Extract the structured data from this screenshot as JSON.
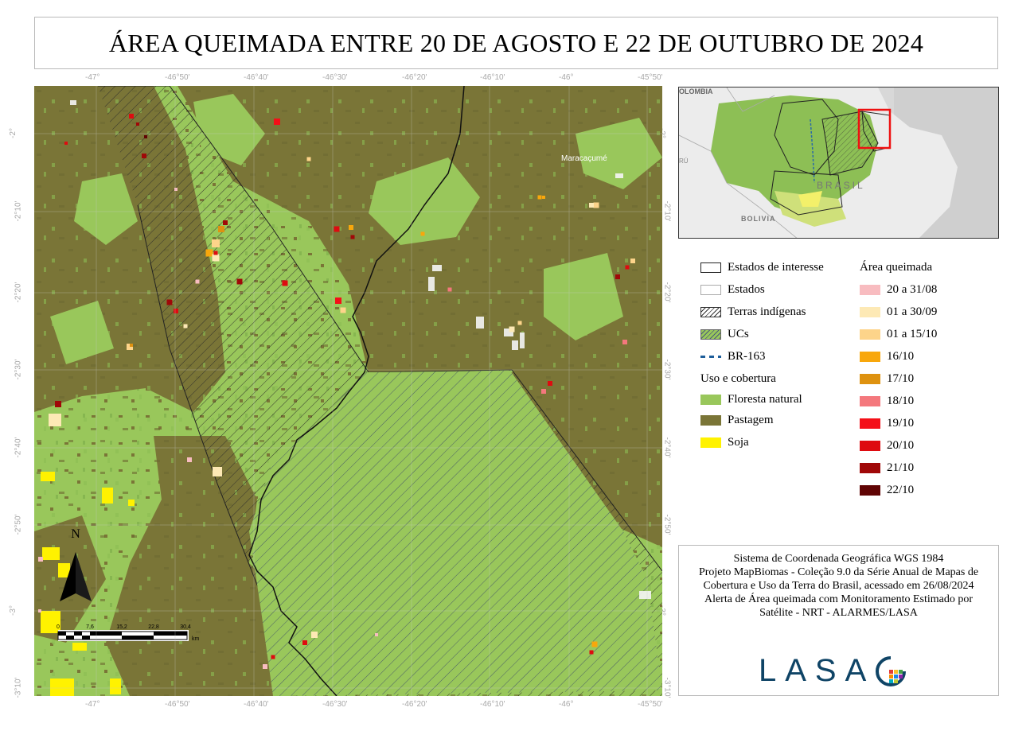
{
  "title": "ÁREA QUEIMADA ENTRE 20 DE AGOSTO E 22 DE OUTUBRO DE 2024",
  "lon_labels": [
    "-47°",
    "-46°50'",
    "-46°40'",
    "-46°30'",
    "-46°20'",
    "-46°10'",
    "-46°",
    "-45°50'"
  ],
  "lat_labels": [
    "-2°",
    "-2°10'",
    "-2°20'",
    "-2°30'",
    "-2°40'",
    "-2°50'",
    "-3°",
    "-3°10'"
  ],
  "map": {
    "place_label": "Maracaçumé",
    "north_label": "N",
    "scale_ticks": [
      "0",
      "7,6",
      "15,2",
      "22,8",
      "30,4"
    ],
    "scale_unit": "km"
  },
  "inset": {
    "labels": [
      "OLOMBIA",
      "BRASIL",
      "BOLIVIA",
      "RÚ"
    ]
  },
  "legend": {
    "left": [
      {
        "label": "Estados de interesse",
        "style": "outline-dark"
      },
      {
        "label": "Estados",
        "style": "outline-light"
      },
      {
        "label": "Terras indígenas",
        "style": "hatch"
      },
      {
        "label": "UCs",
        "style": "green-hatch"
      },
      {
        "label": "BR-163",
        "style": "dash"
      }
    ],
    "uso_title": "Uso e cobertura",
    "uso": [
      {
        "label": "Floresta natural",
        "color": "#99c75b"
      },
      {
        "label": "Pastagem",
        "color": "#7a7537"
      },
      {
        "label": "Soja",
        "color": "#fff200"
      }
    ],
    "burn_title": "Área queimada",
    "burn": [
      {
        "label": "20 a 31/08",
        "color": "#f8bcc0"
      },
      {
        "label": "01 a 30/09",
        "color": "#fde9b5"
      },
      {
        "label": "01 a 15/10",
        "color": "#fdd48a"
      },
      {
        "label": "16/10",
        "color": "#f8a70c"
      },
      {
        "label": "17/10",
        "color": "#de9210"
      },
      {
        "label": "18/10",
        "color": "#f4787d"
      },
      {
        "label": "19/10",
        "color": "#f40f18"
      },
      {
        "label": "20/10",
        "color": "#de0b10"
      },
      {
        "label": "21/10",
        "color": "#a00808"
      },
      {
        "label": "22/10",
        "color": "#600404"
      }
    ]
  },
  "info": {
    "line1": "Sistema de Coordenada Geográfica WGS 1984",
    "line2": "Projeto MapBiomas - Coleção 9.0 da Série Anual de Mapas de Cobertura e Uso da Terra do Brasil, acessado em 26/08/2024",
    "line3": "Alerta de Área queimada com Monitoramento Estimado por Satélite - NRT - ALARMES/LASA",
    "logo_text": "LASA"
  },
  "colors": {
    "forest": "#99c75b",
    "pasture": "#7a7537",
    "soy": "#fff200",
    "logo": "#0f4466"
  }
}
